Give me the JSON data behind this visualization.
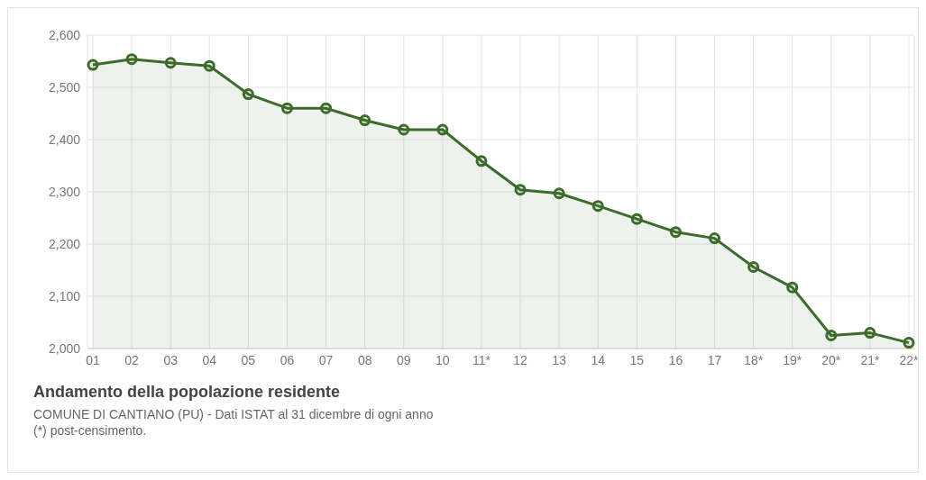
{
  "chart_data": {
    "type": "area",
    "title": "Andamento della popolazione residente",
    "annotations": [
      "COMUNE DI CANTIANO (PU) - Dati ISTAT al 31 dicembre di ogni anno",
      "(*) post-censimento."
    ],
    "categories": [
      "01",
      "02",
      "03",
      "04",
      "05",
      "06",
      "07",
      "08",
      "09",
      "10",
      "11*",
      "12",
      "13",
      "14",
      "15",
      "16",
      "17",
      "18*",
      "19*",
      "20*",
      "21*",
      "22*"
    ],
    "series": [
      {
        "color": "#3d6b2c",
        "values": [
          2543,
          2554,
          2547,
          2541,
          2487,
          2460,
          2460,
          2437,
          2419,
          2419,
          2359,
          2304,
          2297,
          2273,
          2248,
          2223,
          2211,
          2156,
          2117,
          2025,
          2030,
          2011
        ]
      }
    ],
    "ylim": [
      2000,
      2600
    ],
    "yticks": [
      {
        "value": 2000,
        "label": "2,000"
      },
      {
        "value": 2100,
        "label": "2,100"
      },
      {
        "value": 2200,
        "label": "2,200"
      },
      {
        "value": 2300,
        "label": "2,300"
      },
      {
        "value": 2400,
        "label": "2,400"
      },
      {
        "value": 2500,
        "label": "2,500"
      },
      {
        "value": 2600,
        "label": "2,600"
      }
    ],
    "grid": true,
    "marker": "circle"
  }
}
